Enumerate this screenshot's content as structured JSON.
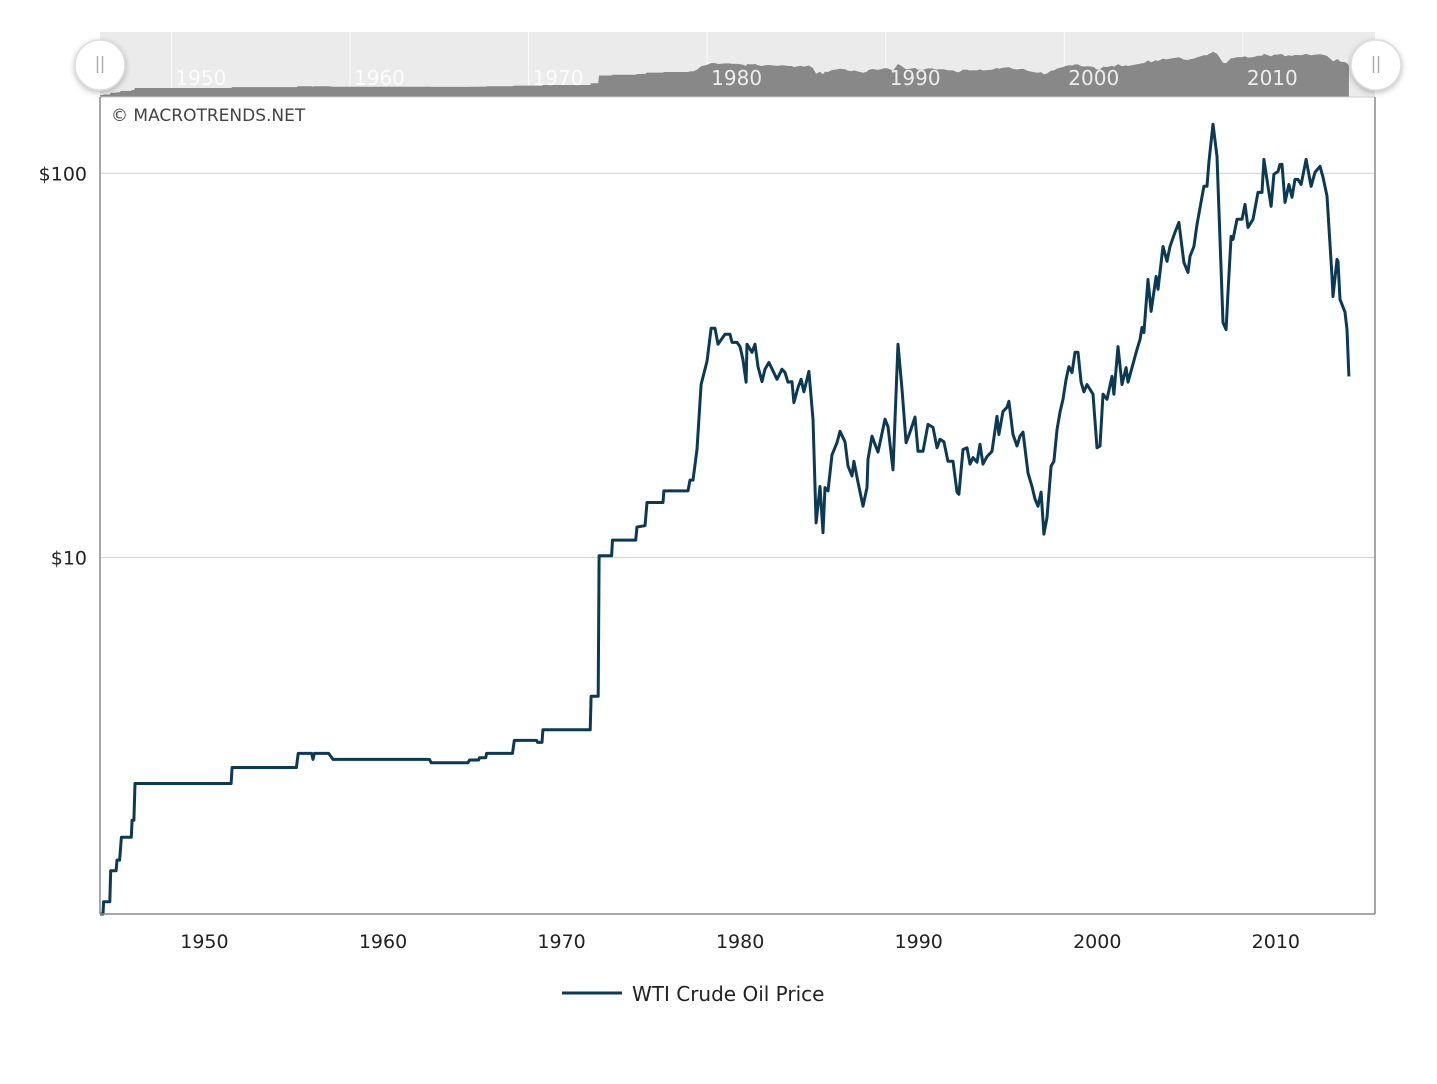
{
  "chart_data": {
    "type": "line",
    "title": "",
    "xlabel": "",
    "ylabel": "",
    "y_scale": "log",
    "xlim": [
      1946,
      2017.4
    ],
    "ylim": [
      1.18,
      158
    ],
    "grid": true,
    "watermark": "© MACROTRENDS.NET",
    "legend": {
      "position": "bottom-center",
      "entries": [
        "WTI Crude Oil Price"
      ]
    },
    "x_ticks": [
      {
        "value": 1950,
        "label": "1950"
      },
      {
        "value": 1960,
        "label": "1960"
      },
      {
        "value": 1970,
        "label": "1970"
      },
      {
        "value": 1980,
        "label": "1980"
      },
      {
        "value": 1990,
        "label": "1990"
      },
      {
        "value": 2000,
        "label": "2000"
      },
      {
        "value": 2010,
        "label": "2010"
      }
    ],
    "y_ticks": [
      {
        "value": 10,
        "label": "$10"
      },
      {
        "value": 100,
        "label": "$100"
      }
    ],
    "navigator": {
      "range": [
        1946,
        2016
      ],
      "labels": [
        "1950",
        "1960",
        "1970",
        "1980",
        "1990",
        "2000",
        "2010"
      ]
    },
    "series": [
      {
        "name": "WTI Crude Oil Price",
        "color": "#0a3a55",
        "points": [
          [
            1946.0,
            1.18
          ],
          [
            1946.17,
            1.18
          ],
          [
            1946.2,
            1.27
          ],
          [
            1946.55,
            1.27
          ],
          [
            1946.6,
            1.53
          ],
          [
            1946.9,
            1.53
          ],
          [
            1946.95,
            1.63
          ],
          [
            1947.1,
            1.63
          ],
          [
            1947.2,
            1.87
          ],
          [
            1947.75,
            1.87
          ],
          [
            1947.8,
            2.07
          ],
          [
            1947.9,
            2.07
          ],
          [
            1947.96,
            2.58
          ],
          [
            1953.34,
            2.58
          ],
          [
            1953.4,
            2.84
          ],
          [
            1957.0,
            2.84
          ],
          [
            1957.1,
            3.09
          ],
          [
            1957.85,
            3.09
          ],
          [
            1957.93,
            2.98
          ],
          [
            1958.0,
            3.09
          ],
          [
            1958.8,
            3.09
          ],
          [
            1959.05,
            2.98
          ],
          [
            1964.45,
            2.98
          ],
          [
            1964.55,
            2.92
          ],
          [
            1966.6,
            2.92
          ],
          [
            1966.7,
            2.97
          ],
          [
            1967.2,
            2.97
          ],
          [
            1967.25,
            3.01
          ],
          [
            1967.6,
            3.01
          ],
          [
            1967.65,
            3.09
          ],
          [
            1969.1,
            3.09
          ],
          [
            1969.2,
            3.34
          ],
          [
            1970.45,
            3.34
          ],
          [
            1970.5,
            3.3
          ],
          [
            1970.75,
            3.3
          ],
          [
            1970.8,
            3.56
          ],
          [
            1973.45,
            3.56
          ],
          [
            1973.5,
            4.35
          ],
          [
            1973.9,
            4.35
          ],
          [
            1973.95,
            10.1
          ],
          [
            1974.65,
            10.1
          ],
          [
            1974.7,
            11.1
          ],
          [
            1976.0,
            11.1
          ],
          [
            1976.07,
            12.0
          ],
          [
            1976.52,
            12.1
          ],
          [
            1976.63,
            13.9
          ],
          [
            1977.53,
            13.9
          ],
          [
            1977.58,
            14.9
          ],
          [
            1978.93,
            14.9
          ],
          [
            1979.04,
            15.9
          ],
          [
            1979.21,
            15.9
          ],
          [
            1979.43,
            19.1
          ],
          [
            1979.66,
            28.2
          ],
          [
            1979.99,
            32.4
          ],
          [
            1980.22,
            39.5
          ],
          [
            1980.44,
            39.5
          ],
          [
            1980.61,
            35.9
          ],
          [
            1981.0,
            38.1
          ],
          [
            1981.28,
            38.1
          ],
          [
            1981.39,
            36.3
          ],
          [
            1981.67,
            36.3
          ],
          [
            1981.84,
            35.4
          ],
          [
            1982.0,
            32.8
          ],
          [
            1982.18,
            28.6
          ],
          [
            1982.23,
            35.9
          ],
          [
            1982.51,
            34.2
          ],
          [
            1982.68,
            35.9
          ],
          [
            1982.85,
            31.4
          ],
          [
            1983.07,
            28.7
          ],
          [
            1983.24,
            30.9
          ],
          [
            1983.46,
            32.2
          ],
          [
            1983.91,
            29.1
          ],
          [
            1984.19,
            30.9
          ],
          [
            1984.36,
            30.3
          ],
          [
            1984.53,
            28.6
          ],
          [
            1984.75,
            28.7
          ],
          [
            1984.86,
            25.3
          ],
          [
            1985.09,
            27.7
          ],
          [
            1985.26,
            29.1
          ],
          [
            1985.42,
            27.0
          ],
          [
            1985.7,
            30.5
          ],
          [
            1985.93,
            22.9
          ],
          [
            1986.1,
            12.3
          ],
          [
            1986.32,
            15.3
          ],
          [
            1986.49,
            11.6
          ],
          [
            1986.6,
            15.2
          ],
          [
            1986.77,
            14.9
          ],
          [
            1986.99,
            18.5
          ],
          [
            1987.27,
            19.9
          ],
          [
            1987.44,
            21.3
          ],
          [
            1987.72,
            20.0
          ],
          [
            1987.89,
            17.3
          ],
          [
            1988.11,
            16.3
          ],
          [
            1988.22,
            17.8
          ],
          [
            1988.45,
            15.7
          ],
          [
            1988.73,
            13.6
          ],
          [
            1988.95,
            15.2
          ],
          [
            1989.01,
            18.0
          ],
          [
            1989.23,
            20.7
          ],
          [
            1989.4,
            19.7
          ],
          [
            1989.57,
            18.8
          ],
          [
            1989.68,
            19.9
          ],
          [
            1989.96,
            22.9
          ],
          [
            1990.13,
            21.9
          ],
          [
            1990.41,
            16.9
          ],
          [
            1990.69,
            35.9
          ],
          [
            1990.91,
            27.4
          ],
          [
            1991.14,
            19.9
          ],
          [
            1991.36,
            21.2
          ],
          [
            1991.64,
            23.2
          ],
          [
            1991.81,
            18.9
          ],
          [
            1992.09,
            18.9
          ],
          [
            1992.37,
            22.2
          ],
          [
            1992.65,
            21.8
          ],
          [
            1992.87,
            19.3
          ],
          [
            1993.04,
            20.3
          ],
          [
            1993.26,
            20.0
          ],
          [
            1993.49,
            17.8
          ],
          [
            1993.77,
            17.8
          ],
          [
            1993.99,
            14.8
          ],
          [
            1994.1,
            14.6
          ],
          [
            1994.33,
            19.1
          ],
          [
            1994.55,
            19.3
          ],
          [
            1994.72,
            17.5
          ],
          [
            1994.89,
            18.2
          ],
          [
            1995.11,
            17.7
          ],
          [
            1995.28,
            19.7
          ],
          [
            1995.45,
            17.5
          ],
          [
            1995.67,
            18.3
          ],
          [
            1995.95,
            18.9
          ],
          [
            1996.23,
            23.3
          ],
          [
            1996.34,
            20.9
          ],
          [
            1996.57,
            24.0
          ],
          [
            1996.79,
            24.6
          ],
          [
            1996.9,
            25.5
          ],
          [
            1997.13,
            20.9
          ],
          [
            1997.35,
            19.5
          ],
          [
            1997.52,
            20.7
          ],
          [
            1997.69,
            21.2
          ],
          [
            1997.97,
            16.6
          ],
          [
            1998.19,
            15.3
          ],
          [
            1998.36,
            14.2
          ],
          [
            1998.53,
            13.6
          ],
          [
            1998.7,
            14.8
          ],
          [
            1998.86,
            11.5
          ],
          [
            1999.03,
            12.7
          ],
          [
            1999.26,
            17.3
          ],
          [
            1999.42,
            17.8
          ],
          [
            1999.59,
            21.5
          ],
          [
            1999.76,
            23.9
          ],
          [
            1999.93,
            25.8
          ],
          [
            2000.1,
            29.1
          ],
          [
            2000.26,
            31.4
          ],
          [
            2000.43,
            30.3
          ],
          [
            2000.6,
            34.2
          ],
          [
            2000.77,
            34.2
          ],
          [
            2000.94,
            28.6
          ],
          [
            2001.1,
            27.0
          ],
          [
            2001.27,
            28.2
          ],
          [
            2001.61,
            26.6
          ],
          [
            2001.83,
            19.3
          ],
          [
            2002.0,
            19.5
          ],
          [
            2002.17,
            26.6
          ],
          [
            2002.39,
            25.8
          ],
          [
            2002.67,
            29.6
          ],
          [
            2002.78,
            26.6
          ],
          [
            2003.01,
            35.4
          ],
          [
            2003.23,
            28.2
          ],
          [
            2003.46,
            31.2
          ],
          [
            2003.57,
            28.6
          ],
          [
            2004.07,
            34.8
          ],
          [
            2004.24,
            36.9
          ],
          [
            2004.35,
            39.7
          ],
          [
            2004.46,
            38.5
          ],
          [
            2004.69,
            52.9
          ],
          [
            2004.86,
            43.7
          ],
          [
            2005.14,
            53.9
          ],
          [
            2005.25,
            49.9
          ],
          [
            2005.53,
            64.5
          ],
          [
            2005.75,
            59.0
          ],
          [
            2005.92,
            64.5
          ],
          [
            2006.2,
            70.2
          ],
          [
            2006.42,
            74.5
          ],
          [
            2006.7,
            58.6
          ],
          [
            2006.93,
            55.2
          ],
          [
            2007.04,
            60.8
          ],
          [
            2007.26,
            64.5
          ],
          [
            2007.43,
            73.6
          ],
          [
            2007.82,
            92.5
          ],
          [
            2007.99,
            92.5
          ],
          [
            2008.1,
            106.9
          ],
          [
            2008.33,
            134.2
          ],
          [
            2008.55,
            110.7
          ],
          [
            2008.89,
            40.9
          ],
          [
            2009.06,
            39.2
          ],
          [
            2009.17,
            49.0
          ],
          [
            2009.34,
            68.5
          ],
          [
            2009.45,
            67.3
          ],
          [
            2009.67,
            75.9
          ],
          [
            2009.95,
            75.9
          ],
          [
            2010.12,
            83.0
          ],
          [
            2010.29,
            72.3
          ],
          [
            2010.57,
            75.9
          ],
          [
            2010.85,
            89.2
          ],
          [
            2011.07,
            89.2
          ],
          [
            2011.18,
            108.7
          ],
          [
            2011.41,
            92.5
          ],
          [
            2011.58,
            82.0
          ],
          [
            2011.74,
            99.4
          ],
          [
            2011.97,
            101.1
          ],
          [
            2012.08,
            105.5
          ],
          [
            2012.19,
            105.5
          ],
          [
            2012.36,
            84.0
          ],
          [
            2012.58,
            93.5
          ],
          [
            2012.75,
            86.6
          ],
          [
            2012.92,
            96.4
          ],
          [
            2013.09,
            96.4
          ],
          [
            2013.26,
            93.5
          ],
          [
            2013.54,
            108.7
          ],
          [
            2013.82,
            92.5
          ],
          [
            2014.04,
            100.6
          ],
          [
            2014.32,
            104.3
          ],
          [
            2014.49,
            97.7
          ],
          [
            2014.71,
            87.3
          ],
          [
            2014.99,
            53.9
          ],
          [
            2015.05,
            47.8
          ],
          [
            2015.27,
            59.7
          ],
          [
            2015.33,
            59.0
          ],
          [
            2015.44,
            47.0
          ],
          [
            2015.72,
            43.5
          ],
          [
            2015.83,
            39.2
          ],
          [
            2015.94,
            29.6
          ]
        ]
      }
    ]
  }
}
